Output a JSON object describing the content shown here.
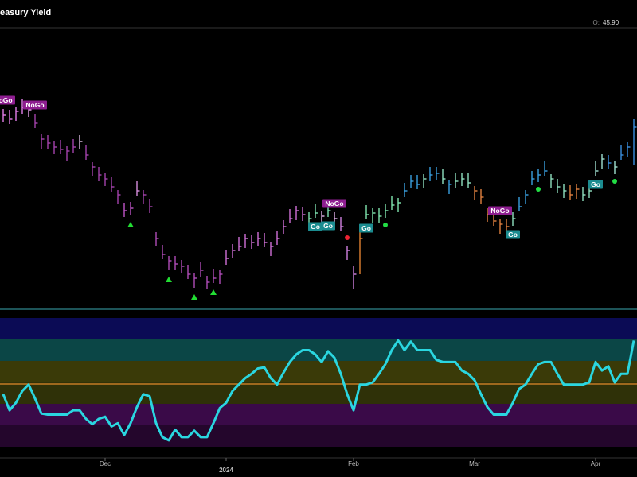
{
  "header": {
    "title": "easury Yield",
    "open_label": "O:",
    "open_value": "45.90"
  },
  "x_labels": [
    {
      "bar": 16,
      "label": "Dec"
    },
    {
      "bar": 35,
      "label": "2024"
    },
    {
      "bar": 55,
      "label": "Feb"
    },
    {
      "bar": 74,
      "label": "Mar"
    },
    {
      "bar": 93,
      "label": "Apr"
    }
  ],
  "chart_data": [
    {
      "type": "ohlc",
      "ylim": [
        0,
        353
      ],
      "high": [
        251,
        250,
        254,
        263,
        258,
        245,
        219,
        218,
        211,
        212,
        204,
        213,
        218,
        205,
        184,
        178,
        171,
        165,
        149,
        133,
        134,
        160,
        149,
        138,
        96,
        80,
        66,
        66,
        61,
        55,
        44,
        58,
        41,
        50,
        49,
        73,
        81,
        90,
        94,
        93,
        96,
        95,
        84,
        98,
        111,
        125,
        129,
        128,
        121,
        132,
        122,
        133,
        121,
        115,
        79,
        53,
        98,
        130,
        126,
        126,
        131,
        142,
        139,
        158,
        168,
        168,
        169,
        178,
        178,
        175,
        162,
        170,
        171,
        170,
        154,
        150,
        126,
        122,
        112,
        113,
        121,
        140,
        149,
        173,
        176,
        185,
        169,
        163,
        156,
        155,
        156,
        153,
        156,
        185,
        194,
        193,
        186,
        205,
        209,
        238
      ],
      "low": [
        234,
        232,
        236,
        245,
        241,
        227,
        201,
        200,
        194,
        194,
        186,
        195,
        201,
        187,
        166,
        160,
        154,
        147,
        131,
        115,
        117,
        142,
        131,
        120,
        79,
        62,
        48,
        48,
        44,
        37,
        26,
        40,
        24,
        32,
        31,
        55,
        64,
        72,
        76,
        75,
        79,
        77,
        66,
        80,
        94,
        107,
        111,
        110,
        104,
        114,
        104,
        115,
        104,
        97,
        61,
        25,
        43,
        112,
        108,
        108,
        114,
        124,
        121,
        140,
        151,
        150,
        151,
        160,
        161,
        157,
        144,
        152,
        154,
        152,
        136,
        132,
        109,
        104,
        94,
        95,
        104,
        122,
        131,
        155,
        159,
        167,
        151,
        145,
        139,
        137,
        138,
        135,
        139,
        167,
        176,
        175,
        169,
        187,
        191,
        180
      ],
      "close": [
        243,
        238,
        248,
        253,
        250,
        233,
        213,
        208,
        203,
        200,
        198,
        203,
        210,
        193,
        178,
        168,
        163,
        153,
        143,
        123,
        126,
        148,
        143,
        128,
        88,
        68,
        60,
        56,
        53,
        43,
        38,
        48,
        33,
        38,
        43,
        63,
        73,
        78,
        88,
        83,
        88,
        83,
        78,
        88,
        103,
        113,
        123,
        118,
        113,
        120,
        116,
        123,
        113,
        103,
        73,
        43,
        88,
        118,
        120,
        116,
        123,
        130,
        133,
        148,
        160,
        156,
        163,
        168,
        170,
        163,
        156,
        160,
        163,
        158,
        148,
        140,
        118,
        110,
        106,
        103,
        113,
        128,
        143,
        163,
        168,
        173,
        163,
        153,
        148,
        143,
        150,
        143,
        148,
        173,
        188,
        183,
        178,
        193,
        203,
        228
      ],
      "bar_colors": [
        "#e27de9",
        "#e27de9",
        "#e27de9",
        "#e27de9",
        "#e8a0ee",
        "#a443ac",
        "#a443ac",
        "#a443ac",
        "#a443ac",
        "#a443ac",
        "#a443ac",
        "#a443ac",
        "#e0c0e6",
        "#a443ac",
        "#a443ac",
        "#a443ac",
        "#a443ac",
        "#a443ac",
        "#a443ac",
        "#c055c8",
        "#c055c8",
        "#d68ddc",
        "#a443ac",
        "#a443ac",
        "#b04cb8",
        "#b04cb8",
        "#b04cb8",
        "#b04cb8",
        "#b04cb8",
        "#b04cb8",
        "#b04cb8",
        "#b04cb8",
        "#b04cb8",
        "#b04cb8",
        "#b04cb8",
        "#d070d8",
        "#d070d8",
        "#d070d8",
        "#d070d8",
        "#d070d8",
        "#d070d8",
        "#d070d8",
        "#d070d8",
        "#d070d8",
        "#d070d8",
        "#d070d8",
        "#d070d8",
        "#d070d8",
        "#7ee0b0",
        "#7ee0b0",
        "#e0b0e8",
        "#7ee0b0",
        "#e0b0e8",
        "#d080e0",
        "#d080e0",
        "#d080e0",
        "#e08030",
        "#80e8b0",
        "#80e8b0",
        "#80e8b0",
        "#80e8b0",
        "#80e8b0",
        "#80e8b0",
        "#3aa0e0",
        "#3aa0e0",
        "#3aa0e0",
        "#90e0c0",
        "#3aa0e0",
        "#3aa0e0",
        "#90e0c0",
        "#3aa0e0",
        "#90e0c0",
        "#90e0c0",
        "#90e0c0",
        "#e08040",
        "#e08040",
        "#e08040",
        "#e08040",
        "#e08040",
        "#e08040",
        "#90e0c0",
        "#3aa0e0",
        "#3aa0e0",
        "#3aa0e0",
        "#3aa0e0",
        "#3aa0e0",
        "#90e0c0",
        "#90e0c0",
        "#90e0c0",
        "#e08040",
        "#e08040",
        "#90e0c0",
        "#90e0c0",
        "#a0e0d0",
        "#a0e0d0",
        "#3a90e0",
        "#a0e0d0",
        "#3a90e0",
        "#3a90e0",
        "#3a90e0"
      ],
      "annotations": [
        {
          "text": "NoGo",
          "bar": 0
        },
        {
          "text": "NoGo",
          "bar": 5
        },
        {
          "text": "NoGo",
          "bar": 52
        },
        {
          "text": "NoGo",
          "bar": 78
        },
        {
          "text": "Go",
          "bar": 49
        },
        {
          "text": "Go",
          "bar": 51
        },
        {
          "text": "Go",
          "bar": 57
        },
        {
          "text": "Go",
          "bar": 80
        },
        {
          "text": "Go",
          "bar": 93
        }
      ],
      "nogo_color": "#8e1e90",
      "go_color": "#1b8c90",
      "up_triangles": [
        20,
        26,
        30,
        33
      ],
      "triangle_color": "#22dd33",
      "go_dots": [
        60,
        84,
        96
      ],
      "go_dot_color": "#22dd44",
      "nogo_dots": [
        54
      ],
      "nogo_dot_color": "#ee2233"
    },
    {
      "type": "line",
      "ylim": [
        -6,
        6
      ],
      "color": "#2ad6e0",
      "bands": [
        {
          "from": 4,
          "to": 6,
          "color": "#0b0b55"
        },
        {
          "from": 2,
          "to": 4,
          "color": "#0b4646"
        },
        {
          "from": 0,
          "to": 2,
          "color": "#3a3a08"
        },
        {
          "from": -2,
          "to": 0,
          "color": "#2f3108"
        },
        {
          "from": -4,
          "to": -2,
          "color": "#3a0a48"
        },
        {
          "from": -6,
          "to": -4,
          "color": "#24062c"
        }
      ],
      "zero_line_color": "#e08a2a",
      "values": [
        -1.1,
        -2.6,
        -1.9,
        -0.8,
        -0.2,
        -1.5,
        -2.9,
        -3.0,
        -3.0,
        -3.0,
        -3.0,
        -2.6,
        -2.6,
        -3.4,
        -3.9,
        -3.4,
        -3.2,
        -4.1,
        -3.8,
        -4.9,
        -3.8,
        -2.3,
        -1.1,
        -1.3,
        -3.8,
        -5.1,
        -5.4,
        -4.4,
        -5.1,
        -5.1,
        -4.5,
        -5.1,
        -5.1,
        -3.8,
        -2.4,
        -1.9,
        -0.8,
        -0.2,
        0.4,
        0.8,
        1.3,
        1.4,
        0.4,
        -0.2,
        0.9,
        1.9,
        2.6,
        3.0,
        3.0,
        2.6,
        1.9,
        2.9,
        2.3,
        0.8,
        -1.1,
        -2.6,
        -0.2,
        -0.2,
        0,
        0.8,
        1.7,
        3.0,
        3.9,
        3.0,
        3.8,
        3.0,
        3.0,
        3.0,
        2.1,
        1.9,
        1.9,
        1.9,
        1.1,
        0.8,
        0.2,
        -1.1,
        -2.3,
        -3.0,
        -3.0,
        -3.0,
        -1.9,
        -0.6,
        -0.2,
        0.8,
        1.7,
        1.9,
        1.9,
        0.8,
        -0.2,
        -0.2,
        -0.2,
        -0.2,
        0,
        1.9,
        1.1,
        1.5,
        0,
        0.8,
        0.8,
        3.9
      ]
    }
  ]
}
